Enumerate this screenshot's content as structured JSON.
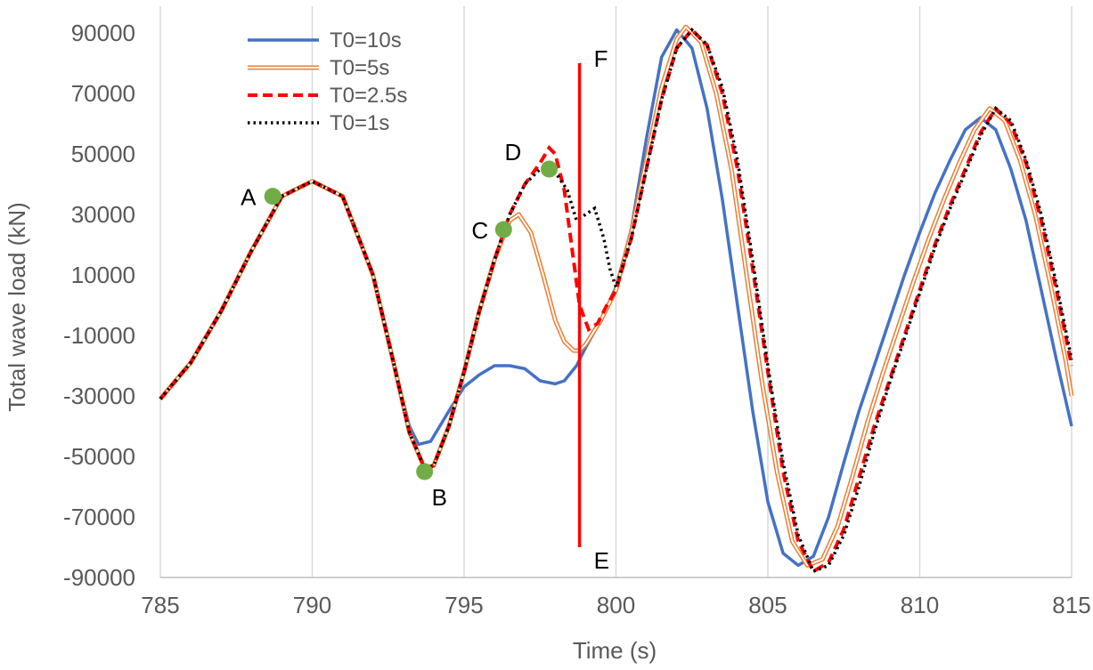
{
  "chart_data": {
    "type": "line",
    "title": "",
    "xlabel": "Time (s)",
    "ylabel": "Total wave load (kN)",
    "xlim": [
      785,
      815
    ],
    "ylim": [
      -90000,
      90000
    ],
    "xticks": [
      785,
      790,
      795,
      800,
      805,
      810,
      815
    ],
    "yticks": [
      -90000,
      -70000,
      -50000,
      -30000,
      -10000,
      10000,
      30000,
      50000,
      70000,
      90000
    ],
    "grid": "vertical",
    "legend_position": "top-left",
    "series": [
      {
        "name": "T0=10s",
        "style": "solid",
        "color": "#4472C4",
        "points": [
          [
            785,
            -31000
          ],
          [
            786,
            -19000
          ],
          [
            787,
            -2000
          ],
          [
            788,
            18000
          ],
          [
            789,
            36000
          ],
          [
            790,
            41000
          ],
          [
            791,
            36000
          ],
          [
            792,
            10000
          ],
          [
            792.7,
            -20000
          ],
          [
            793.2,
            -40000
          ],
          [
            793.5,
            -46000
          ],
          [
            793.9,
            -45000
          ],
          [
            794.5,
            -35000
          ],
          [
            795,
            -27000
          ],
          [
            795.5,
            -23000
          ],
          [
            796,
            -20000
          ],
          [
            796.5,
            -20000
          ],
          [
            797,
            -21000
          ],
          [
            797.5,
            -25000
          ],
          [
            798,
            -26000
          ],
          [
            798.3,
            -25000
          ],
          [
            798.7,
            -20000
          ],
          [
            799,
            -14000
          ],
          [
            799.5,
            -5000
          ],
          [
            800,
            6000
          ],
          [
            800.5,
            25000
          ],
          [
            801,
            55000
          ],
          [
            801.5,
            82000
          ],
          [
            802,
            91000
          ],
          [
            802.5,
            85000
          ],
          [
            803,
            65000
          ],
          [
            803.5,
            35000
          ],
          [
            804,
            0
          ],
          [
            804.5,
            -35000
          ],
          [
            805,
            -65000
          ],
          [
            805.5,
            -82000
          ],
          [
            806,
            -86000
          ],
          [
            806.5,
            -83000
          ],
          [
            807,
            -70000
          ],
          [
            807.5,
            -52000
          ],
          [
            808,
            -35000
          ],
          [
            808.5,
            -20000
          ],
          [
            809,
            -5000
          ],
          [
            809.5,
            10000
          ],
          [
            810,
            24000
          ],
          [
            810.5,
            37000
          ],
          [
            811,
            48000
          ],
          [
            811.5,
            58000
          ],
          [
            812,
            62000
          ],
          [
            812.5,
            58000
          ],
          [
            813,
            45000
          ],
          [
            813.5,
            28000
          ],
          [
            814,
            5000
          ],
          [
            814.5,
            -18000
          ],
          [
            815,
            -40000
          ]
        ]
      },
      {
        "name": "T0=5s",
        "style": "double",
        "color": "#ED7D31",
        "points": [
          [
            785,
            -31000
          ],
          [
            786,
            -19000
          ],
          [
            787,
            -2000
          ],
          [
            788,
            18000
          ],
          [
            789,
            36000
          ],
          [
            790,
            41000
          ],
          [
            791,
            36000
          ],
          [
            792,
            10000
          ],
          [
            792.7,
            -20000
          ],
          [
            793.2,
            -42000
          ],
          [
            793.7,
            -54000
          ],
          [
            794,
            -53000
          ],
          [
            794.5,
            -40000
          ],
          [
            795,
            -22000
          ],
          [
            795.5,
            -2000
          ],
          [
            796,
            15000
          ],
          [
            796.5,
            28000
          ],
          [
            796.8,
            30000
          ],
          [
            797.2,
            24000
          ],
          [
            797.6,
            10000
          ],
          [
            798,
            -5000
          ],
          [
            798.3,
            -12000
          ],
          [
            798.6,
            -15000
          ],
          [
            798.8,
            -15000
          ],
          [
            799,
            -13000
          ],
          [
            799.5,
            -5000
          ],
          [
            800,
            5000
          ],
          [
            800.5,
            24000
          ],
          [
            801,
            48000
          ],
          [
            801.5,
            72000
          ],
          [
            802,
            88000
          ],
          [
            802.3,
            92000
          ],
          [
            802.8,
            87000
          ],
          [
            803.3,
            70000
          ],
          [
            803.8,
            45000
          ],
          [
            804.3,
            10000
          ],
          [
            804.8,
            -25000
          ],
          [
            805.3,
            -55000
          ],
          [
            805.8,
            -78000
          ],
          [
            806.3,
            -86000
          ],
          [
            806.8,
            -84000
          ],
          [
            807.3,
            -73000
          ],
          [
            807.8,
            -56000
          ],
          [
            808.3,
            -38000
          ],
          [
            808.8,
            -22000
          ],
          [
            809.3,
            -7000
          ],
          [
            809.8,
            8000
          ],
          [
            810.3,
            22000
          ],
          [
            810.8,
            35000
          ],
          [
            811.3,
            47000
          ],
          [
            811.8,
            58000
          ],
          [
            812.3,
            65000
          ],
          [
            812.8,
            61000
          ],
          [
            813.3,
            48000
          ],
          [
            813.8,
            30000
          ],
          [
            814.3,
            7000
          ],
          [
            814.8,
            -18000
          ],
          [
            815,
            -30000
          ]
        ]
      },
      {
        "name": "T0=2.5s",
        "style": "dashed",
        "color": "#FF0000",
        "points": [
          [
            785,
            -31000
          ],
          [
            786,
            -19000
          ],
          [
            787,
            -2000
          ],
          [
            788,
            18000
          ],
          [
            789,
            36000
          ],
          [
            790,
            41000
          ],
          [
            791,
            36000
          ],
          [
            792,
            10000
          ],
          [
            792.7,
            -20000
          ],
          [
            793.2,
            -42000
          ],
          [
            793.7,
            -54000
          ],
          [
            794,
            -53000
          ],
          [
            794.5,
            -40000
          ],
          [
            795,
            -22000
          ],
          [
            795.5,
            -2000
          ],
          [
            796,
            15000
          ],
          [
            796.5,
            30000
          ],
          [
            797,
            40000
          ],
          [
            797.5,
            47000
          ],
          [
            797.8,
            52000
          ],
          [
            798,
            50000
          ],
          [
            798.3,
            38000
          ],
          [
            798.6,
            15000
          ],
          [
            798.8,
            0
          ],
          [
            799.1,
            -8000
          ],
          [
            799.4,
            -6000
          ],
          [
            799.7,
            0
          ],
          [
            800,
            5000
          ],
          [
            800.5,
            22000
          ],
          [
            801,
            45000
          ],
          [
            801.5,
            68000
          ],
          [
            802,
            85000
          ],
          [
            802.5,
            91000
          ],
          [
            803,
            86000
          ],
          [
            803.5,
            70000
          ],
          [
            804,
            45000
          ],
          [
            804.5,
            12000
          ],
          [
            805,
            -22000
          ],
          [
            805.5,
            -55000
          ],
          [
            806,
            -78000
          ],
          [
            806.5,
            -88000
          ],
          [
            807,
            -85000
          ],
          [
            807.5,
            -74000
          ],
          [
            808,
            -57000
          ],
          [
            808.5,
            -40000
          ],
          [
            809,
            -25000
          ],
          [
            809.5,
            -10000
          ],
          [
            810,
            5000
          ],
          [
            810.5,
            20000
          ],
          [
            811,
            33000
          ],
          [
            811.5,
            45000
          ],
          [
            812,
            57000
          ],
          [
            812.5,
            65000
          ],
          [
            813,
            60000
          ],
          [
            813.5,
            47000
          ],
          [
            814,
            28000
          ],
          [
            814.5,
            5000
          ],
          [
            815,
            -20000
          ]
        ]
      },
      {
        "name": "T0=1s",
        "style": "dotted",
        "color": "#000000",
        "points": [
          [
            785,
            -31000
          ],
          [
            786,
            -19000
          ],
          [
            787,
            -2000
          ],
          [
            788,
            18000
          ],
          [
            789,
            36000
          ],
          [
            790,
            41000
          ],
          [
            791,
            36000
          ],
          [
            792,
            10000
          ],
          [
            792.7,
            -20000
          ],
          [
            793.2,
            -42000
          ],
          [
            793.7,
            -54000
          ],
          [
            794,
            -53000
          ],
          [
            794.5,
            -40000
          ],
          [
            795,
            -22000
          ],
          [
            795.5,
            -2000
          ],
          [
            796,
            15000
          ],
          [
            796.5,
            30000
          ],
          [
            797,
            40000
          ],
          [
            797.5,
            45000
          ],
          [
            798,
            44000
          ],
          [
            798.4,
            38000
          ],
          [
            798.7,
            28000
          ],
          [
            799,
            30000
          ],
          [
            799.3,
            32000
          ],
          [
            799.6,
            22000
          ],
          [
            799.8,
            12000
          ],
          [
            800,
            6000
          ],
          [
            800.5,
            22000
          ],
          [
            801,
            45000
          ],
          [
            801.5,
            68000
          ],
          [
            802,
            85000
          ],
          [
            802.5,
            91000
          ],
          [
            803,
            86000
          ],
          [
            803.5,
            72000
          ],
          [
            804,
            48000
          ],
          [
            804.5,
            15000
          ],
          [
            805,
            -20000
          ],
          [
            805.5,
            -52000
          ],
          [
            806,
            -76000
          ],
          [
            806.5,
            -88000
          ],
          [
            807,
            -86000
          ],
          [
            807.5,
            -76000
          ],
          [
            808,
            -60000
          ],
          [
            808.5,
            -42000
          ],
          [
            809,
            -26000
          ],
          [
            809.5,
            -11000
          ],
          [
            810,
            4000
          ],
          [
            810.5,
            19000
          ],
          [
            811,
            32000
          ],
          [
            811.5,
            44000
          ],
          [
            812,
            56000
          ],
          [
            812.5,
            65000
          ],
          [
            813,
            61000
          ],
          [
            813.5,
            48000
          ],
          [
            814,
            30000
          ],
          [
            814.5,
            7000
          ],
          [
            815,
            -18000
          ]
        ]
      }
    ],
    "markers": [
      {
        "label": "A",
        "x": 788.7,
        "y": 36000,
        "label_side": "left"
      },
      {
        "label": "B",
        "x": 793.7,
        "y": -55000,
        "label_side": "below-right"
      },
      {
        "label": "C",
        "x": 796.3,
        "y": 25000,
        "label_side": "left"
      },
      {
        "label": "D",
        "x": 797.8,
        "y": 45000,
        "label_side": "above-left"
      }
    ],
    "marker_color": "#70AD47",
    "vertical_line": {
      "x": 798.8,
      "y_from": -80000,
      "y_to": 80000,
      "color": "#FF0000",
      "top_label": "F",
      "bottom_label": "E"
    }
  }
}
